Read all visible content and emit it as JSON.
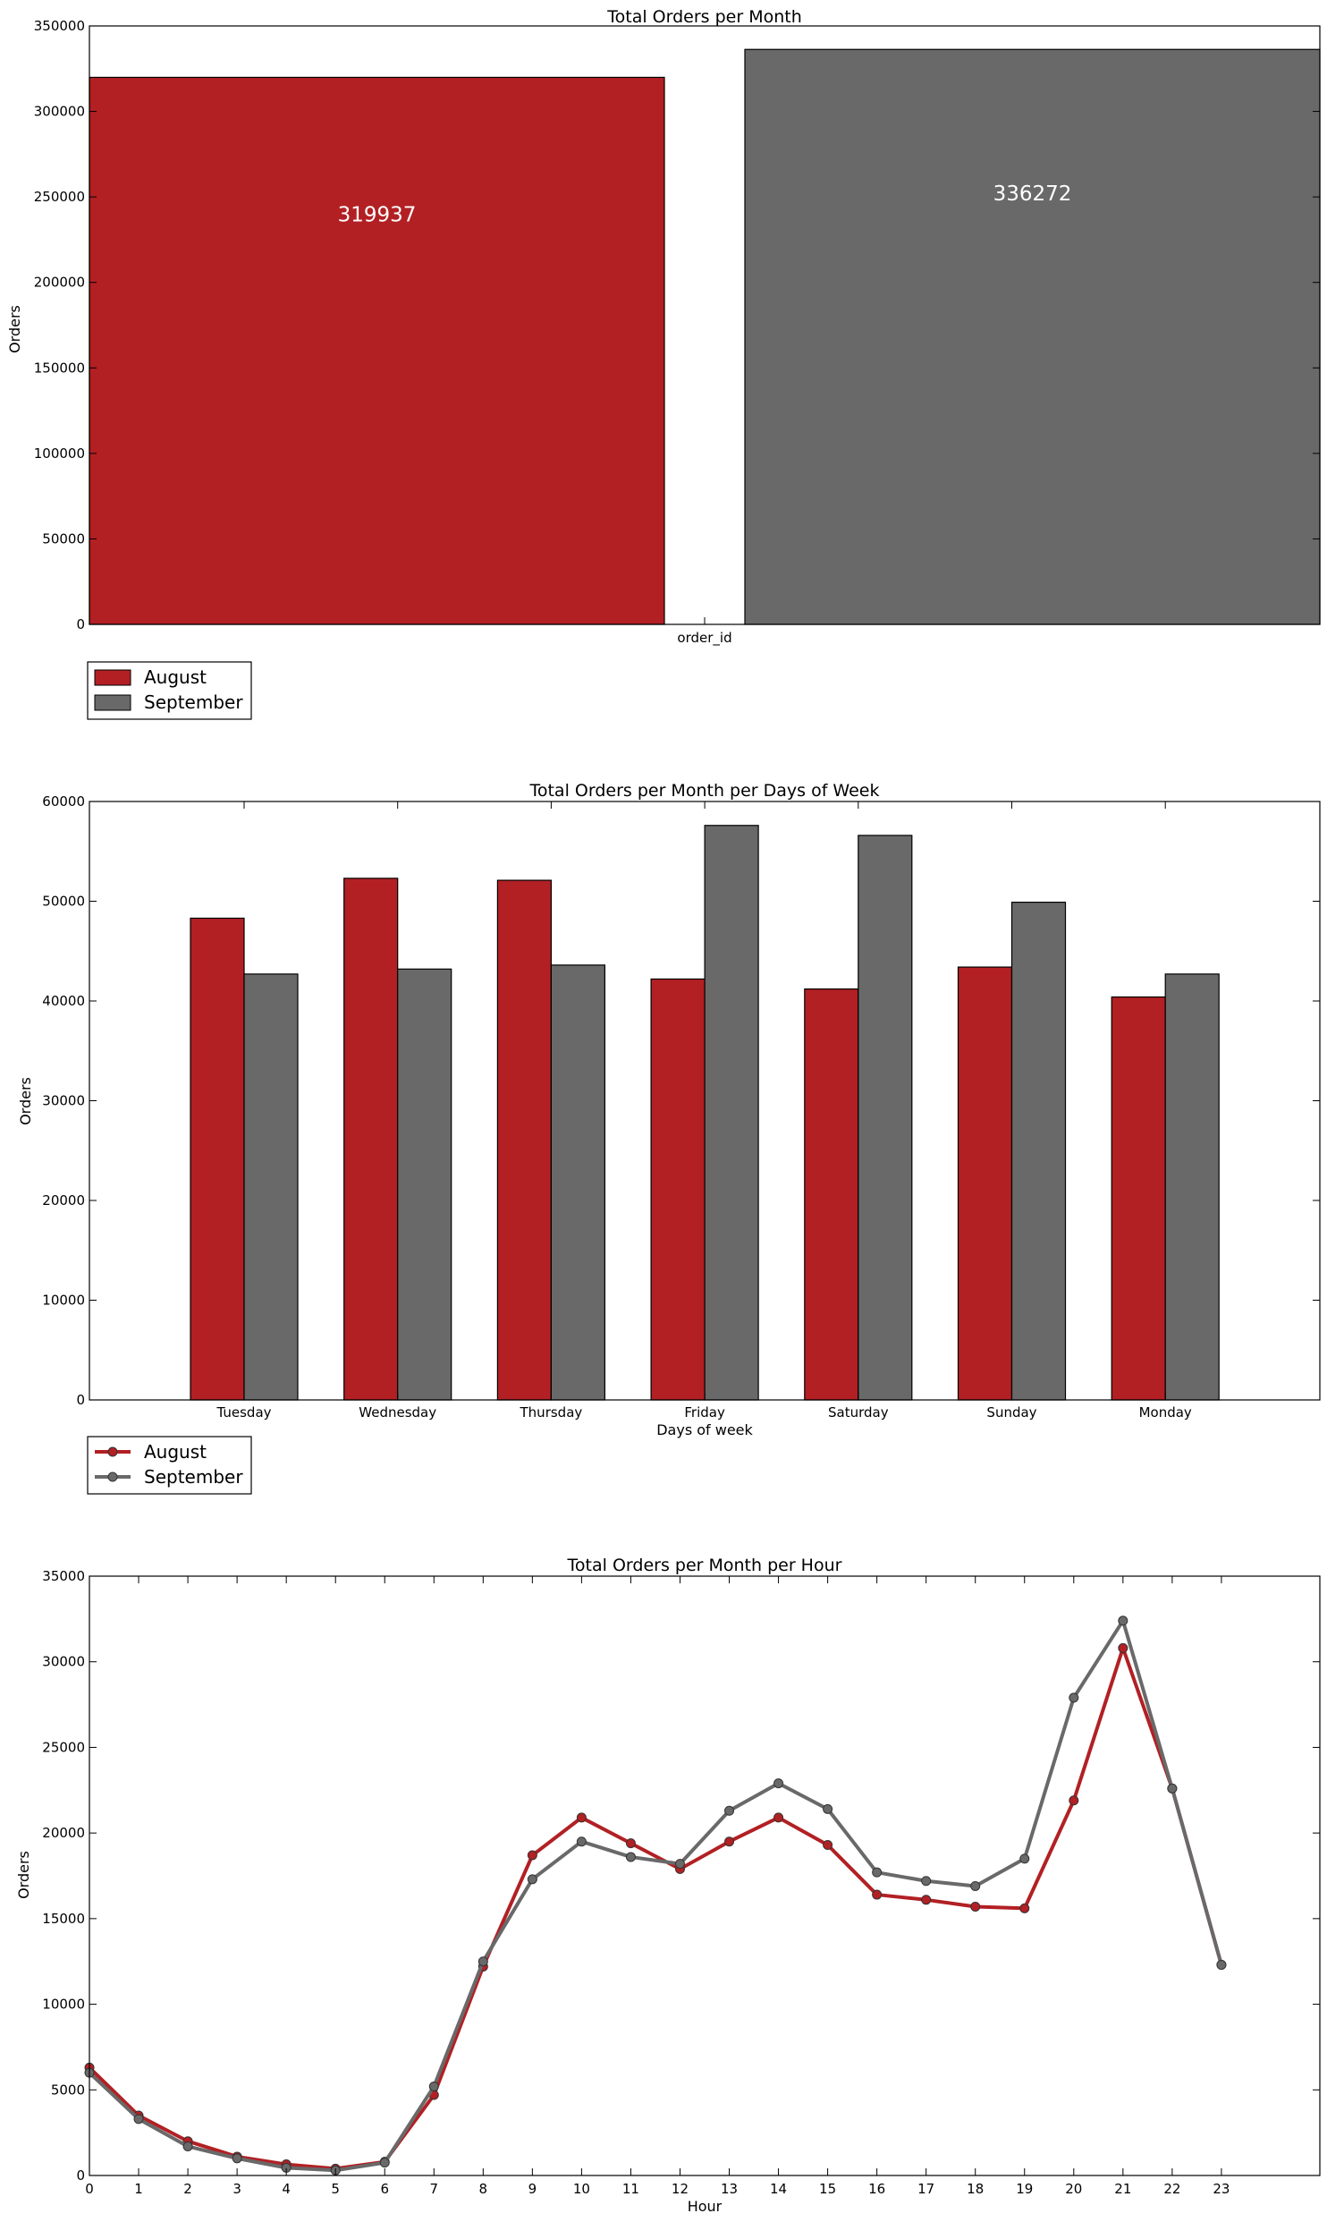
{
  "colors": {
    "August": "#b22024",
    "September": "#696969"
  },
  "chart_data": [
    {
      "type": "bar",
      "title": "Total Orders per Month",
      "xlabel": "",
      "ylabel": "Orders",
      "categories": [
        "order_id"
      ],
      "series": [
        {
          "name": "August",
          "values": [
            319937
          ]
        },
        {
          "name": "September",
          "values": [
            336272
          ]
        }
      ],
      "data_labels": [
        "319937",
        "336272"
      ],
      "ylim": [
        0,
        350000
      ],
      "yticks": [
        0,
        50000,
        100000,
        150000,
        200000,
        250000,
        300000,
        350000
      ],
      "legend": "below-left",
      "grid": false
    },
    {
      "type": "bar",
      "title": "Total Orders per Month per Days of Week",
      "xlabel": "Days of week",
      "ylabel": "Orders",
      "categories": [
        "Tuesday",
        "Wednesday",
        "Thursday",
        "Friday",
        "Saturday",
        "Sunday",
        "Monday"
      ],
      "series": [
        {
          "name": "August",
          "values": [
            48300,
            52300,
            52100,
            42200,
            41200,
            43400,
            40400
          ]
        },
        {
          "name": "September",
          "values": [
            42700,
            43200,
            43600,
            57600,
            56600,
            49900,
            42700
          ]
        }
      ],
      "ylim": [
        0,
        60000
      ],
      "yticks": [
        0,
        10000,
        20000,
        30000,
        40000,
        50000,
        60000
      ],
      "legend": "below-left",
      "grid": false
    },
    {
      "type": "line",
      "title": "Total Orders per Month per Hour",
      "xlabel": "Hour",
      "ylabel": "Orders",
      "x": [
        0,
        1,
        2,
        3,
        4,
        5,
        6,
        7,
        8,
        9,
        10,
        11,
        12,
        13,
        14,
        15,
        16,
        17,
        18,
        19,
        20,
        21,
        22,
        23
      ],
      "series": [
        {
          "name": "August",
          "values": [
            6300,
            3500,
            2000,
            1100,
            650,
            400,
            800,
            4700,
            12200,
            18700,
            20900,
            19400,
            17900,
            19500,
            20900,
            19300,
            16400,
            16100,
            15700,
            15600,
            21900,
            30800,
            22600,
            12300
          ]
        },
        {
          "name": "September",
          "values": [
            6000,
            3300,
            1700,
            1000,
            450,
            300,
            750,
            5200,
            12500,
            17300,
            19500,
            18600,
            18200,
            21300,
            22900,
            21400,
            17700,
            17200,
            16900,
            18500,
            27900,
            32400,
            22600,
            12300
          ]
        }
      ],
      "xlim": [
        0,
        25
      ],
      "ylim": [
        0,
        35000
      ],
      "yticks": [
        0,
        5000,
        10000,
        15000,
        20000,
        25000,
        30000,
        35000
      ],
      "xticks": [
        0,
        1,
        2,
        3,
        4,
        5,
        6,
        7,
        8,
        9,
        10,
        11,
        12,
        13,
        14,
        15,
        16,
        17,
        18,
        19,
        20,
        21,
        22,
        23
      ],
      "legend": "above-left",
      "grid": false
    }
  ]
}
